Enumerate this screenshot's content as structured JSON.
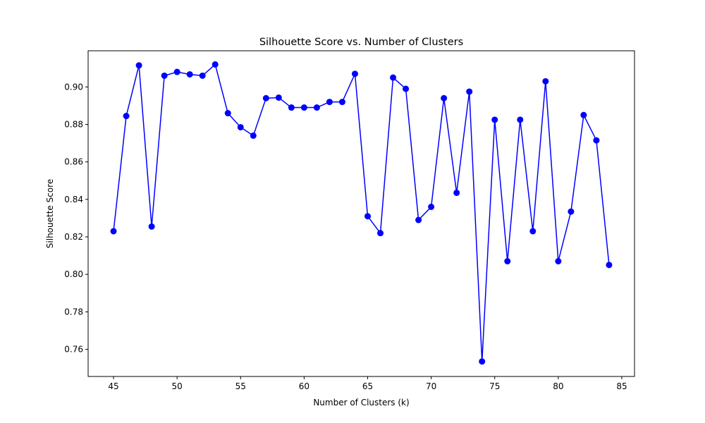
{
  "chart_data": {
    "type": "line",
    "title": "Silhouette Score vs. Number of Clusters",
    "xlabel": "Number of Clusters (k)",
    "ylabel": "Silhouette Score",
    "xlim": [
      43,
      86
    ],
    "ylim": [
      0.7455,
      0.9193
    ],
    "xticks": [
      45,
      50,
      55,
      60,
      65,
      70,
      75,
      80,
      85
    ],
    "xtick_labels": [
      "45",
      "50",
      "55",
      "60",
      "65",
      "70",
      "75",
      "80",
      "85"
    ],
    "yticks": [
      0.76,
      0.78,
      0.8,
      0.82,
      0.84,
      0.86,
      0.88,
      0.9
    ],
    "ytick_labels": [
      "0.76",
      "0.78",
      "0.80",
      "0.82",
      "0.84",
      "0.86",
      "0.88",
      "0.90"
    ],
    "grid": false,
    "series": [
      {
        "color": "#0000ff",
        "marker": "circle",
        "x": [
          45,
          46,
          47,
          48,
          49,
          50,
          51,
          52,
          53,
          54,
          55,
          56,
          57,
          58,
          59,
          60,
          61,
          62,
          63,
          64,
          65,
          66,
          67,
          68,
          69,
          70,
          71,
          72,
          73,
          74,
          75,
          76,
          77,
          78,
          79,
          80,
          81,
          82,
          83,
          84
        ],
        "y": [
          0.823,
          0.8845,
          0.9115,
          0.8255,
          0.906,
          0.908,
          0.9067,
          0.906,
          0.912,
          0.886,
          0.8785,
          0.874,
          0.894,
          0.8943,
          0.889,
          0.889,
          0.889,
          0.892,
          0.892,
          0.907,
          0.831,
          0.822,
          0.905,
          0.899,
          0.829,
          0.836,
          0.894,
          0.8435,
          0.8975,
          0.7535,
          0.8825,
          0.807,
          0.8825,
          0.823,
          0.903,
          0.807,
          0.8335,
          0.885,
          0.8715,
          0.805
        ]
      }
    ]
  }
}
